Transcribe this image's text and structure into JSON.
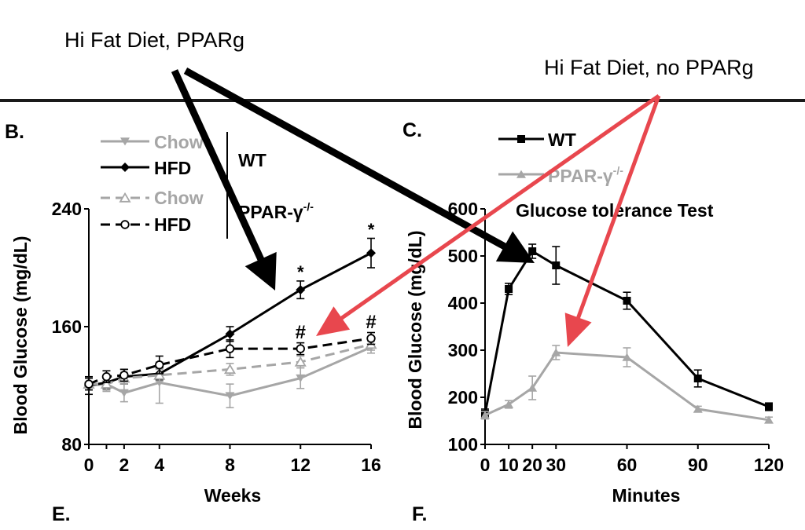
{
  "annotations": {
    "label_ppar": "Hi Fat Diet, PPARg",
    "label_no_ppar": "Hi Fat Diet, no PPARg"
  },
  "panel_letters": {
    "b": "B.",
    "c": "C.",
    "e": "E.",
    "f": "F."
  },
  "legend_b": {
    "chow": "Chow",
    "hfd": "HFD",
    "wt": "WT",
    "ppar": "PPAR-γ",
    "ppar_sup": "-/-"
  },
  "legend_c": {
    "wt": "WT",
    "ppar": "PPAR-γ",
    "ppar_sup": "-/-"
  },
  "colors": {
    "black": "#000000",
    "gray": "#a6a6a6",
    "red": "#e8474e"
  },
  "chart_data": [
    {
      "type": "line",
      "panel": "B",
      "xlabel": "Weeks",
      "ylabel": "Blood Glucose (mg/dL)",
      "xlim": [
        0,
        16
      ],
      "ylim": [
        80,
        240
      ],
      "xticks": [
        0,
        1,
        2,
        4,
        8,
        12,
        16
      ],
      "xtick_labels": [
        "0",
        "2",
        "4",
        "8",
        "12",
        "16"
      ],
      "xtick_label_values": [
        0,
        2,
        4,
        8,
        12,
        16
      ],
      "yticks": [
        80,
        160,
        240
      ],
      "series": [
        {
          "key": "wt_chow",
          "name": "Chow",
          "group": "WT",
          "color": "#a6a6a6",
          "dash": false,
          "marker": "tri-down-filled",
          "x": [
            0,
            1,
            2,
            4,
            8,
            12,
            16
          ],
          "y": [
            120,
            121,
            115,
            122,
            113,
            125,
            146
          ],
          "err": [
            6,
            5,
            6,
            14,
            8,
            7,
            4
          ]
        },
        {
          "key": "wt_hfd",
          "name": "HFD",
          "group": "WT",
          "color": "#000000",
          "dash": false,
          "marker": "diamond-filled",
          "x": [
            0,
            1,
            2,
            4,
            8,
            12,
            16
          ],
          "y": [
            120,
            122,
            126,
            128,
            155,
            185,
            210
          ],
          "err": [
            6,
            4,
            5,
            4,
            5,
            6,
            10
          ]
        },
        {
          "key": "ko_chow",
          "name": "Chow",
          "group": "PPAR-γ-/-",
          "color": "#a6a6a6",
          "dash": true,
          "marker": "tri-up-open",
          "x": [
            0,
            1,
            2,
            4,
            8,
            12,
            16
          ],
          "y": [
            121,
            121,
            125,
            127,
            131,
            136,
            148
          ],
          "err": [
            4,
            4,
            4,
            4,
            4,
            4,
            4
          ]
        },
        {
          "key": "ko_hfd",
          "name": "HFD",
          "group": "PPAR-γ-/-",
          "color": "#000000",
          "dash": true,
          "marker": "circle-open",
          "x": [
            0,
            1,
            2,
            4,
            8,
            12,
            16
          ],
          "y": [
            121,
            126,
            127,
            134,
            145,
            145,
            152
          ],
          "err": [
            4,
            4,
            4,
            6,
            6,
            4,
            4
          ]
        }
      ],
      "annotations": [
        {
          "text": "*",
          "x": 12,
          "y": 193
        },
        {
          "text": "*",
          "x": 16,
          "y": 222
        },
        {
          "text": "#",
          "x": 12,
          "y": 152
        },
        {
          "text": "#",
          "x": 16,
          "y": 159
        }
      ]
    },
    {
      "type": "line",
      "panel": "C",
      "title": "Glucose tolerance Test",
      "xlabel": "Minutes",
      "ylabel": "Blood Glucose (mg/dL)",
      "xlim": [
        0,
        120
      ],
      "ylim": [
        100,
        600
      ],
      "xticks": [
        0,
        10,
        20,
        30,
        60,
        90,
        120
      ],
      "xtick_labels": [
        "0",
        "10",
        "20",
        "30",
        "60",
        "90",
        "120"
      ],
      "yticks": [
        100,
        200,
        300,
        400,
        500,
        600
      ],
      "series": [
        {
          "key": "wt",
          "name": "WT",
          "color": "#000000",
          "dash": false,
          "marker": "square-filled",
          "x": [
            0,
            10,
            20,
            30,
            60,
            90,
            120
          ],
          "y": [
            165,
            430,
            510,
            480,
            405,
            240,
            180
          ],
          "err": [
            10,
            12,
            15,
            40,
            18,
            18,
            8
          ]
        },
        {
          "key": "ko",
          "name": "PPAR-γ-/-",
          "color": "#a6a6a6",
          "dash": false,
          "marker": "tri-up-filled",
          "x": [
            0,
            10,
            20,
            30,
            60,
            90,
            120
          ],
          "y": [
            162,
            185,
            220,
            295,
            285,
            175,
            152
          ],
          "err": [
            8,
            8,
            25,
            15,
            20,
            6,
            6
          ]
        }
      ]
    }
  ]
}
